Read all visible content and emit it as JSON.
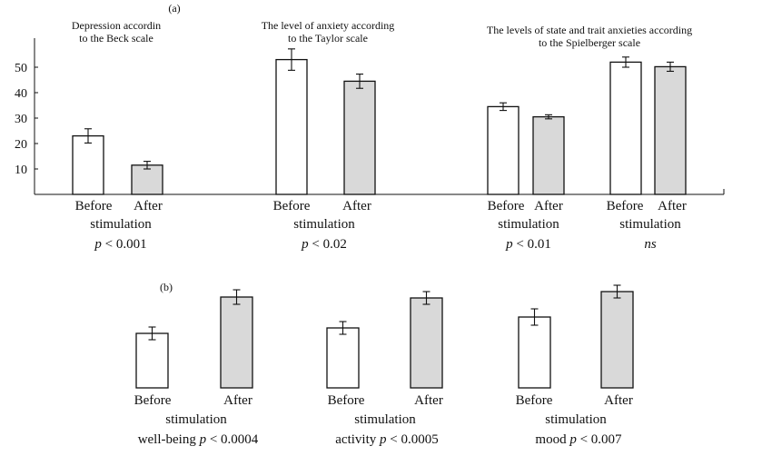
{
  "chart_data": [
    {
      "type": "bar",
      "panel_label": "(a)",
      "y_ticks": [
        10,
        20,
        30,
        40,
        50
      ],
      "ylim": [
        0,
        60
      ],
      "colors": {
        "before": "#ffffff",
        "after": "#d9d9d9"
      },
      "groups": [
        {
          "title_lines": [
            "Depression accordin",
            "to the Beck scale"
          ],
          "categories": [
            "Before",
            "After"
          ],
          "values": [
            23,
            11.5
          ],
          "errors": [
            2.8,
            1.5
          ],
          "xlabel": "stimulation",
          "stat": "p < 0.001"
        },
        {
          "title_lines": [
            "The level of anxiety according",
            "to the Taylor scale"
          ],
          "categories": [
            "Before",
            "After"
          ],
          "values": [
            53,
            44.5
          ],
          "errors": [
            4.2,
            2.8
          ],
          "xlabel": "stimulation",
          "stat": "p < 0.02"
        },
        {
          "title_lines": [
            "The levels of state and trait anxieties according",
            "to the Spielberger scale"
          ],
          "categories": [
            "Before",
            "After"
          ],
          "values": [
            34.5,
            30.5
          ],
          "errors": [
            1.5,
            0.8
          ],
          "xlabel": "stimulation",
          "stat": "p < 0.01"
        },
        {
          "title_lines": [],
          "categories": [
            "Before",
            "After"
          ],
          "values": [
            52,
            50.2
          ],
          "errors": [
            2.0,
            1.8
          ],
          "xlabel": "stimulation",
          "stat": "ns"
        }
      ]
    },
    {
      "type": "bar",
      "panel_label": "(b)",
      "y_axis_shown": false,
      "ylim": [
        0,
        130
      ],
      "colors": {
        "before": "#ffffff",
        "after": "#d9d9d9"
      },
      "groups": [
        {
          "categories": [
            "Before",
            "After"
          ],
          "values": [
            60,
            100
          ],
          "errors": [
            7,
            8
          ],
          "xlabel": "stimulation",
          "stat": "well-being p < 0.0004"
        },
        {
          "categories": [
            "Before",
            "After"
          ],
          "values": [
            66,
            99
          ],
          "errors": [
            7,
            7
          ],
          "xlabel": "stimulation",
          "stat": "activity p < 0.0005"
        },
        {
          "categories": [
            "Before",
            "After"
          ],
          "values": [
            78,
            106
          ],
          "errors": [
            9,
            7
          ],
          "xlabel": "stimulation",
          "stat": "mood p < 0.007"
        }
      ]
    }
  ]
}
